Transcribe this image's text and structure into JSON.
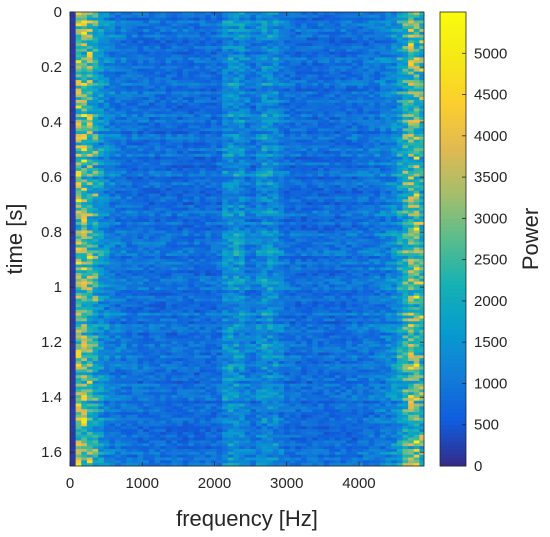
{
  "chart_data": {
    "type": "heatmap",
    "xlabel": "frequency [Hz]",
    "ylabel": "time [s]",
    "colorbar_label": "Power",
    "colormap": "parula",
    "xlim": [
      0,
      4900
    ],
    "ylim": [
      1.65,
      0
    ],
    "y_reversed": true,
    "x_ticks": [
      0,
      1000,
      2000,
      3000,
      4000
    ],
    "y_ticks": [
      0,
      0.2,
      0.4,
      0.6,
      0.8,
      1,
      1.2,
      1.4,
      1.6
    ],
    "y_tick_labels": [
      "0",
      "0.2",
      "0.4",
      "0.6",
      "0.8",
      "1",
      "1.2",
      "1.4",
      "1.6"
    ],
    "colorbar_range": [
      0,
      5500
    ],
    "colorbar_ticks": [
      0,
      500,
      1000,
      1500,
      2000,
      2500,
      3000,
      3500,
      4000,
      4500,
      5000
    ],
    "frequency_bin_width_hz": 78,
    "time_rows": 160,
    "mean_power_by_frequency": [
      [
        0,
        150
      ],
      [
        78,
        2600
      ],
      [
        156,
        2900
      ],
      [
        234,
        2500
      ],
      [
        312,
        2100
      ],
      [
        390,
        1600
      ],
      [
        468,
        1300
      ],
      [
        546,
        1100
      ],
      [
        624,
        1000
      ],
      [
        702,
        950
      ],
      [
        780,
        900
      ],
      [
        1000,
        850
      ],
      [
        1500,
        800
      ],
      [
        1800,
        780
      ],
      [
        2000,
        800
      ],
      [
        2080,
        850
      ],
      [
        2160,
        1350
      ],
      [
        2240,
        1400
      ],
      [
        2320,
        1350
      ],
      [
        2400,
        1300
      ],
      [
        2480,
        950
      ],
      [
        2560,
        900
      ],
      [
        2640,
        1300
      ],
      [
        2720,
        1350
      ],
      [
        2800,
        1300
      ],
      [
        2880,
        1250
      ],
      [
        2960,
        850
      ],
      [
        3200,
        800
      ],
      [
        3500,
        780
      ],
      [
        3800,
        800
      ],
      [
        4000,
        850
      ],
      [
        4200,
        950
      ],
      [
        4400,
        1100
      ],
      [
        4500,
        1300
      ],
      [
        4580,
        1700
      ],
      [
        4660,
        2200
      ],
      [
        4740,
        2700
      ],
      [
        4820,
        2400
      ],
      [
        4900,
        1800
      ]
    ],
    "peak_power_by_frequency": [
      [
        78,
        5000
      ],
      [
        156,
        5200
      ],
      [
        234,
        4800
      ],
      [
        312,
        3800
      ],
      [
        4660,
        4800
      ],
      [
        4740,
        5300
      ],
      [
        4820,
        4600
      ]
    ]
  }
}
